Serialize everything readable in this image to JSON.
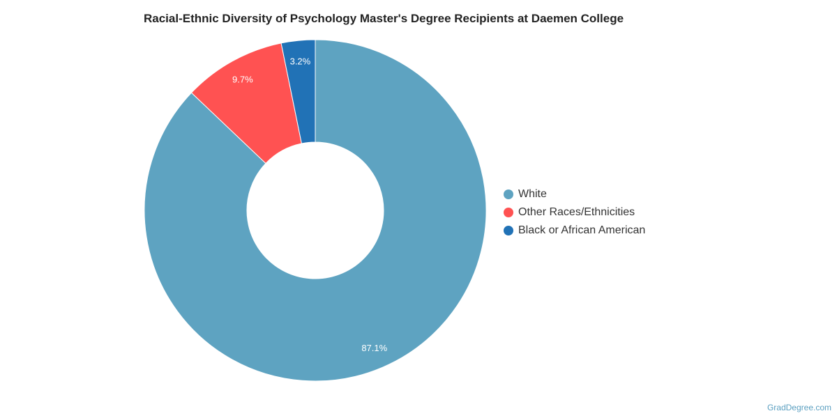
{
  "title": "Racial-Ethnic Diversity of Psychology Master's Degree Recipients at Daemen College",
  "chart_data": {
    "type": "pie",
    "variant": "donut",
    "slices": [
      {
        "name": "White",
        "value": 87.1,
        "label": "87.1%",
        "color": "#5ea3c1"
      },
      {
        "name": "Other Races/Ethnicities",
        "value": 9.7,
        "label": "9.7%",
        "color": "#ff5252"
      },
      {
        "name": "Black or African American",
        "value": 3.2,
        "label": "3.2%",
        "color": "#2172b6"
      }
    ],
    "legend_position": "right"
  },
  "credit": "GradDegree.com"
}
